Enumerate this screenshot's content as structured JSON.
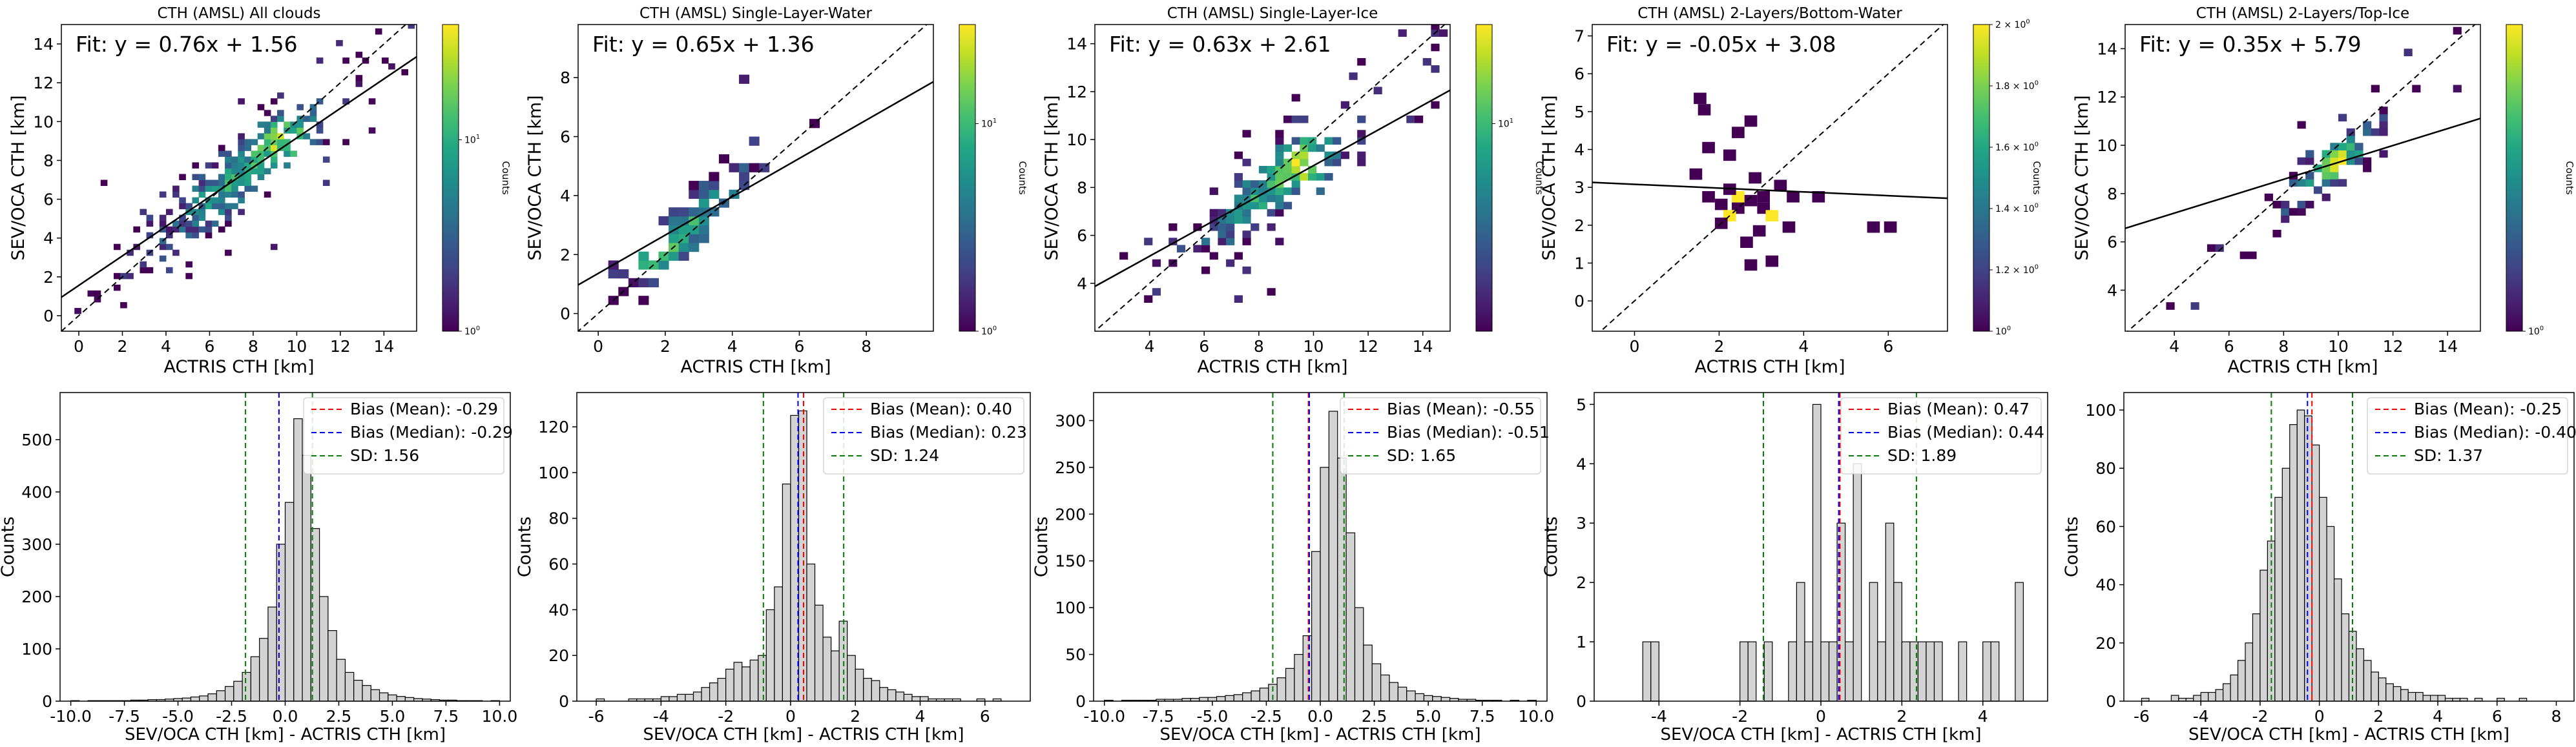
{
  "figure": {
    "scatter_colorbar_label": "Counts",
    "hist_xlabel": "SEV/OCA CTH [km] - ACTRIS CTH [km]",
    "hist_ylabel": "Counts",
    "scatter_xlabel": "ACTRIS CTH [km]",
    "scatter_ylabel": "SEV/OCA CTH [km]",
    "legend_entries": [
      "Bias (Mean)",
      "Bias (Median)",
      "SD"
    ],
    "colors": {
      "mean_line": "#ff0000",
      "median_line": "#0000ff",
      "sd_line": "#008000",
      "hist_fill": "#d3d3d3",
      "fit_line": "#000000",
      "one_to_one_line": "#000000"
    },
    "colormap": "viridis"
  },
  "chart_data": [
    {
      "type": "heatmap",
      "title": "CTH (AMSL) All clouds",
      "fit_text": "Fit: y = 0.76x + 1.56",
      "fit": {
        "slope": 0.76,
        "intercept": 1.56
      },
      "xlabel": "ACTRIS CTH [km]",
      "ylabel": "SEV/OCA CTH [km]",
      "xlim": [
        -0.8,
        15.5
      ],
      "ylim": [
        -0.8,
        15.0
      ],
      "xticks": [
        0,
        2,
        4,
        6,
        8,
        10,
        12,
        14
      ],
      "yticks": [
        0,
        2,
        4,
        6,
        8,
        10,
        12,
        14
      ],
      "colorbar": {
        "label": "Counts",
        "scale": "log",
        "ticks": [
          "10^0",
          "10^1"
        ],
        "range": [
          1,
          40
        ]
      },
      "one_to_one": true,
      "density_center": [
        7.0,
        6.9
      ],
      "density_spread": 3.0,
      "density_peak": [
        9.5,
        8.8
      ]
    },
    {
      "type": "heatmap",
      "title": "CTH (AMSL) Single-Layer-Water",
      "fit_text": "Fit: y = 0.65x + 1.36",
      "fit": {
        "slope": 0.65,
        "intercept": 1.36
      },
      "xlabel": "ACTRIS CTH [km]",
      "ylabel": "SEV/OCA CTH [km]",
      "xlim": [
        -0.6,
        10.0
      ],
      "ylim": [
        -0.6,
        9.8
      ],
      "xticks": [
        0,
        2,
        4,
        6,
        8
      ],
      "yticks": [
        0,
        2,
        4,
        6,
        8
      ],
      "colorbar": {
        "label": "Counts",
        "scale": "log",
        "ticks": [
          "10^0",
          "10^1"
        ],
        "range": [
          1,
          30
        ]
      },
      "one_to_one": true,
      "density_center": [
        2.6,
        2.9
      ],
      "density_spread": 1.6,
      "density_peak": [
        1.6,
        1.8
      ]
    },
    {
      "type": "heatmap",
      "title": "CTH (AMSL) Single-Layer-Ice",
      "fit_text": "Fit: y = 0.63x + 2.61",
      "fit": {
        "slope": 0.63,
        "intercept": 2.61
      },
      "xlabel": "ACTRIS CTH [km]",
      "ylabel": "SEV/OCA CTH [km]",
      "xlim": [
        2.0,
        15.0
      ],
      "ylim": [
        2.0,
        14.8
      ],
      "xticks": [
        4,
        6,
        8,
        10,
        12,
        14
      ],
      "yticks": [
        4,
        6,
        8,
        10,
        12,
        14
      ],
      "colorbar": {
        "label": "Counts",
        "scale": "log",
        "ticks": [
          "10^1"
        ],
        "range": [
          1,
          30
        ]
      },
      "one_to_one": true,
      "density_center": [
        8.2,
        7.8
      ],
      "density_spread": 2.3,
      "density_peak": [
        9.5,
        8.8
      ]
    },
    {
      "type": "heatmap",
      "title": "CTH (AMSL) 2-Layers/Bottom-Water",
      "fit_text": "Fit: y = -0.05x + 3.08",
      "fit": {
        "slope": -0.05,
        "intercept": 3.08
      },
      "xlabel": "ACTRIS CTH [km]",
      "ylabel": "SEV/OCA CTH [km]",
      "xlim": [
        -1.0,
        7.4
      ],
      "ylim": [
        -0.8,
        7.3
      ],
      "xticks": [
        0,
        2,
        4,
        6
      ],
      "yticks": [
        0,
        1,
        2,
        3,
        4,
        5,
        6,
        7
      ],
      "colorbar": {
        "label": "Counts",
        "scale": "log",
        "ticks": [
          "10^0",
          "1.2 × 10^0",
          "1.4 × 10^0",
          "1.6 × 10^0",
          "1.8 × 10^0",
          "2 × 10^0"
        ],
        "range": [
          1,
          2
        ]
      },
      "one_to_one": true,
      "cells": [
        [
          1.4,
          5.2,
          1
        ],
        [
          1.5,
          4.9,
          1
        ],
        [
          2.3,
          4.3,
          1
        ],
        [
          2.6,
          4.6,
          1
        ],
        [
          1.6,
          3.9,
          1
        ],
        [
          2.1,
          3.7,
          1
        ],
        [
          1.3,
          3.2,
          1
        ],
        [
          2.7,
          3.1,
          1
        ],
        [
          3.3,
          2.9,
          1
        ],
        [
          3.6,
          2.6,
          1
        ],
        [
          2.3,
          2.6,
          2
        ],
        [
          2.6,
          2.5,
          1
        ],
        [
          1.9,
          2.4,
          1
        ],
        [
          1.6,
          2.6,
          1
        ],
        [
          2.3,
          2.3,
          1
        ],
        [
          2.9,
          2.3,
          1
        ],
        [
          3.1,
          2.1,
          2
        ],
        [
          2.1,
          2.1,
          2
        ],
        [
          1.9,
          1.9,
          1
        ],
        [
          2.8,
          1.7,
          1
        ],
        [
          3.5,
          1.8,
          1
        ],
        [
          4.2,
          2.6,
          1
        ],
        [
          5.5,
          1.8,
          1
        ],
        [
          5.9,
          1.8,
          1
        ],
        [
          2.5,
          1.4,
          1
        ],
        [
          2.1,
          2.8,
          1
        ],
        [
          3.1,
          0.9,
          1
        ],
        [
          2.6,
          0.8,
          1
        ],
        [
          2.9,
          2.6,
          1
        ]
      ]
    },
    {
      "type": "heatmap",
      "title": "CTH (AMSL) 2-Layers/Top-Ice",
      "fit_text": "Fit: y = 0.35x + 5.79",
      "fit": {
        "slope": 0.35,
        "intercept": 5.79
      },
      "xlabel": "ACTRIS CTH [km]",
      "ylabel": "SEV/OCA CTH [km]",
      "xlim": [
        2.2,
        15.2
      ],
      "ylim": [
        2.3,
        15.0
      ],
      "xticks": [
        4,
        6,
        8,
        10,
        12,
        14
      ],
      "yticks": [
        4,
        6,
        8,
        10,
        12,
        14
      ],
      "colorbar": {
        "label": "Counts",
        "scale": "log",
        "ticks": [
          "10^0"
        ],
        "range": [
          1,
          12
        ]
      },
      "one_to_one": true,
      "density_center": [
        9.5,
        8.9
      ],
      "density_spread": 1.5,
      "density_peak": [
        9.8,
        9.2
      ]
    },
    {
      "type": "bar",
      "subtype": "histogram",
      "xlabel": "SEV/OCA CTH [km] - ACTRIS CTH [km]",
      "ylabel": "Counts",
      "xlim": [
        -10.5,
        10.5
      ],
      "ylim": [
        0,
        590
      ],
      "xticks": [
        -10.0,
        -7.5,
        -5.0,
        -2.5,
        0.0,
        2.5,
        5.0,
        7.5,
        10.0
      ],
      "yticks": [
        0,
        100,
        200,
        300,
        400,
        500
      ],
      "bin_start": -10.0,
      "bin_width": 0.4,
      "counts": [
        1,
        0,
        1,
        1,
        1,
        1,
        1,
        2,
        2,
        3,
        3,
        4,
        5,
        6,
        8,
        10,
        14,
        20,
        28,
        38,
        55,
        85,
        120,
        180,
        300,
        380,
        540,
        470,
        330,
        200,
        135,
        80,
        55,
        40,
        30,
        22,
        16,
        12,
        9,
        7,
        5,
        4,
        3,
        2,
        2,
        1,
        1,
        1,
        0,
        1
      ],
      "mean": -0.29,
      "median": -0.29,
      "sd": 1.56,
      "legend": [
        "Bias (Mean): -0.29",
        "Bias (Median): -0.29",
        "SD: 1.56"
      ]
    },
    {
      "type": "bar",
      "subtype": "histogram",
      "xlabel": "SEV/OCA CTH [km] - ACTRIS CTH [km]",
      "ylabel": "Counts",
      "xlim": [
        -6.6,
        7.4
      ],
      "ylim": [
        0,
        135
      ],
      "xticks": [
        -6,
        -4,
        -2,
        0,
        2,
        4,
        6
      ],
      "yticks": [
        0,
        20,
        40,
        60,
        80,
        100,
        120
      ],
      "bin_start": -6.0,
      "bin_width": 0.25,
      "counts": [
        1,
        0,
        0,
        0,
        1,
        1,
        1,
        1,
        2,
        2,
        3,
        3,
        4,
        6,
        8,
        10,
        14,
        17,
        15,
        18,
        20,
        40,
        50,
        95,
        125,
        127,
        60,
        42,
        28,
        22,
        35,
        20,
        14,
        10,
        9,
        6,
        5,
        4,
        3,
        2,
        2,
        1,
        1,
        1,
        1,
        0,
        0,
        1,
        0,
        1
      ],
      "mean": 0.4,
      "median": 0.23,
      "sd": 1.24,
      "legend": [
        "Bias (Mean): 0.40",
        "Bias (Median): 0.23",
        "SD: 1.24"
      ]
    },
    {
      "type": "bar",
      "subtype": "histogram",
      "xlabel": "SEV/OCA CTH [km] - ACTRIS CTH [km]",
      "ylabel": "Counts",
      "xlim": [
        -10.5,
        10.5
      ],
      "ylim": [
        0,
        330
      ],
      "xticks": [
        -10.0,
        -7.5,
        -5.0,
        -2.5,
        0.0,
        2.5,
        5.0,
        7.5,
        10.0
      ],
      "yticks": [
        0,
        50,
        100,
        150,
        200,
        250,
        300
      ],
      "bin_start": -10.0,
      "bin_width": 0.4,
      "counts": [
        1,
        0,
        1,
        1,
        1,
        1,
        2,
        2,
        2,
        3,
        3,
        4,
        4,
        5,
        6,
        7,
        9,
        11,
        14,
        18,
        25,
        35,
        50,
        70,
        160,
        250,
        310,
        260,
        180,
        100,
        60,
        40,
        28,
        20,
        15,
        11,
        8,
        6,
        5,
        4,
        3,
        2,
        2,
        1,
        1,
        1,
        0,
        1,
        0,
        1
      ],
      "mean": -0.55,
      "median": -0.51,
      "sd": 1.65,
      "legend": [
        "Bias (Mean): -0.55",
        "Bias (Median): -0.51",
        "SD: 1.65"
      ]
    },
    {
      "type": "bar",
      "subtype": "histogram",
      "xlabel": "SEV/OCA CTH [km] - ACTRIS CTH [km]",
      "ylabel": "Counts",
      "xlim": [
        -5.6,
        5.6
      ],
      "ylim": [
        0,
        5.2
      ],
      "xticks": [
        -4,
        -2,
        0,
        2,
        4
      ],
      "yticks": [
        0,
        1,
        2,
        3,
        4,
        5
      ],
      "bin_start": -4.4,
      "bin_width": 0.2,
      "counts": [
        1,
        1,
        0,
        0,
        0,
        0,
        0,
        0,
        0,
        0,
        0,
        0,
        1,
        1,
        0,
        1,
        0,
        0,
        1,
        2,
        1,
        5,
        1,
        1,
        3,
        1,
        4,
        0,
        2,
        1,
        3,
        2,
        1,
        1,
        1,
        1,
        1,
        0,
        0,
        1,
        0,
        0,
        1,
        1,
        0,
        0,
        2
      ],
      "mean": 0.47,
      "median": 0.44,
      "sd": 1.89,
      "legend": [
        "Bias (Mean): 0.47",
        "Bias (Median): 0.44",
        "SD: 1.89"
      ]
    },
    {
      "type": "bar",
      "subtype": "histogram",
      "xlabel": "SEV/OCA CTH [km] - ACTRIS CTH [km]",
      "ylabel": "Counts",
      "xlim": [
        -6.6,
        8.6
      ],
      "ylim": [
        0,
        106
      ],
      "xticks": [
        -6,
        -4,
        -2,
        0,
        2,
        4,
        6,
        8
      ],
      "yticks": [
        0,
        20,
        40,
        60,
        80,
        100
      ],
      "bin_start": -6.0,
      "bin_width": 0.25,
      "counts": [
        1,
        0,
        0,
        0,
        2,
        1,
        1,
        2,
        3,
        3,
        4,
        6,
        9,
        14,
        20,
        30,
        45,
        55,
        70,
        80,
        95,
        100,
        98,
        88,
        70,
        60,
        42,
        30,
        24,
        18,
        14,
        10,
        8,
        6,
        5,
        4,
        3,
        3,
        2,
        2,
        2,
        1,
        1,
        1,
        0,
        1,
        0,
        0,
        1,
        0,
        0,
        1
      ],
      "mean": -0.25,
      "median": -0.4,
      "sd": 1.37,
      "legend": [
        "Bias (Mean): -0.25",
        "Bias (Median): -0.40",
        "SD: 1.37"
      ]
    }
  ]
}
